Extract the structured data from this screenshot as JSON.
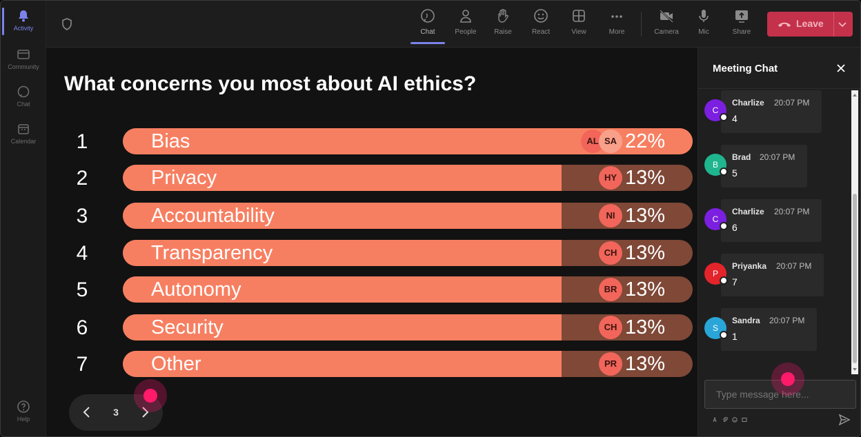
{
  "rail": {
    "items": [
      {
        "label": "Activity",
        "icon": "bell-icon",
        "active": true
      },
      {
        "label": "Community",
        "icon": "community-icon"
      },
      {
        "label": "Chat",
        "icon": "chat-icon"
      },
      {
        "label": "Calendar",
        "icon": "calendar-icon"
      }
    ],
    "help_label": "Help"
  },
  "toolbar": {
    "buttons": [
      {
        "label": "Chat",
        "icon": "chat-icon",
        "active": true
      },
      {
        "label": "People",
        "icon": "people-icon"
      },
      {
        "label": "Raise",
        "icon": "raise-hand-icon"
      },
      {
        "label": "React",
        "icon": "react-icon"
      },
      {
        "label": "View",
        "icon": "view-grid-icon"
      },
      {
        "label": "More",
        "icon": "more-icon"
      },
      {
        "label": "Camera",
        "icon": "camera-off-icon"
      },
      {
        "label": "Mic",
        "icon": "mic-icon"
      },
      {
        "label": "Share",
        "icon": "share-icon"
      }
    ],
    "leave_label": "Leave"
  },
  "poll": {
    "question": "What concerns you most about AI ethics?",
    "options": [
      {
        "rank": "1",
        "label": "Bias",
        "percent": "22%",
        "share": 1.0,
        "voters": [
          "AL",
          "SA"
        ]
      },
      {
        "rank": "2",
        "label": "Privacy",
        "percent": "13%",
        "share": 0.77,
        "voters": [
          "HY"
        ]
      },
      {
        "rank": "3",
        "label": "Accountability",
        "percent": "13%",
        "share": 0.77,
        "voters": [
          "NI"
        ]
      },
      {
        "rank": "4",
        "label": "Transparency",
        "percent": "13%",
        "share": 0.77,
        "voters": [
          "CH"
        ]
      },
      {
        "rank": "5",
        "label": "Autonomy",
        "percent": "13%",
        "share": 0.77,
        "voters": [
          "BR"
        ]
      },
      {
        "rank": "6",
        "label": "Security",
        "percent": "13%",
        "share": 0.77,
        "voters": [
          "CH"
        ]
      },
      {
        "rank": "7",
        "label": "Other",
        "percent": "13%",
        "share": 0.77,
        "voters": [
          "PR"
        ]
      }
    ],
    "page": "3"
  },
  "chat": {
    "title": "Meeting Chat",
    "messages": [
      {
        "initial": "C",
        "name": "Charlize",
        "time": "20:07 PM",
        "text": "4",
        "color": "#7b1fe0"
      },
      {
        "initial": "B",
        "name": "Brad",
        "time": "20:07 PM",
        "text": "5",
        "color": "#1fb58f"
      },
      {
        "initial": "C",
        "name": "Charlize",
        "time": "20:07 PM",
        "text": "6",
        "color": "#7b1fe0"
      },
      {
        "initial": "P",
        "name": "Priyanka",
        "time": "20:07 PM",
        "text": "7",
        "color": "#e3242b"
      },
      {
        "initial": "S",
        "name": "Sandra",
        "time": "20:07 PM",
        "text": "1",
        "color": "#2aa5d8"
      }
    ],
    "compose_placeholder": "Type message here..."
  }
}
